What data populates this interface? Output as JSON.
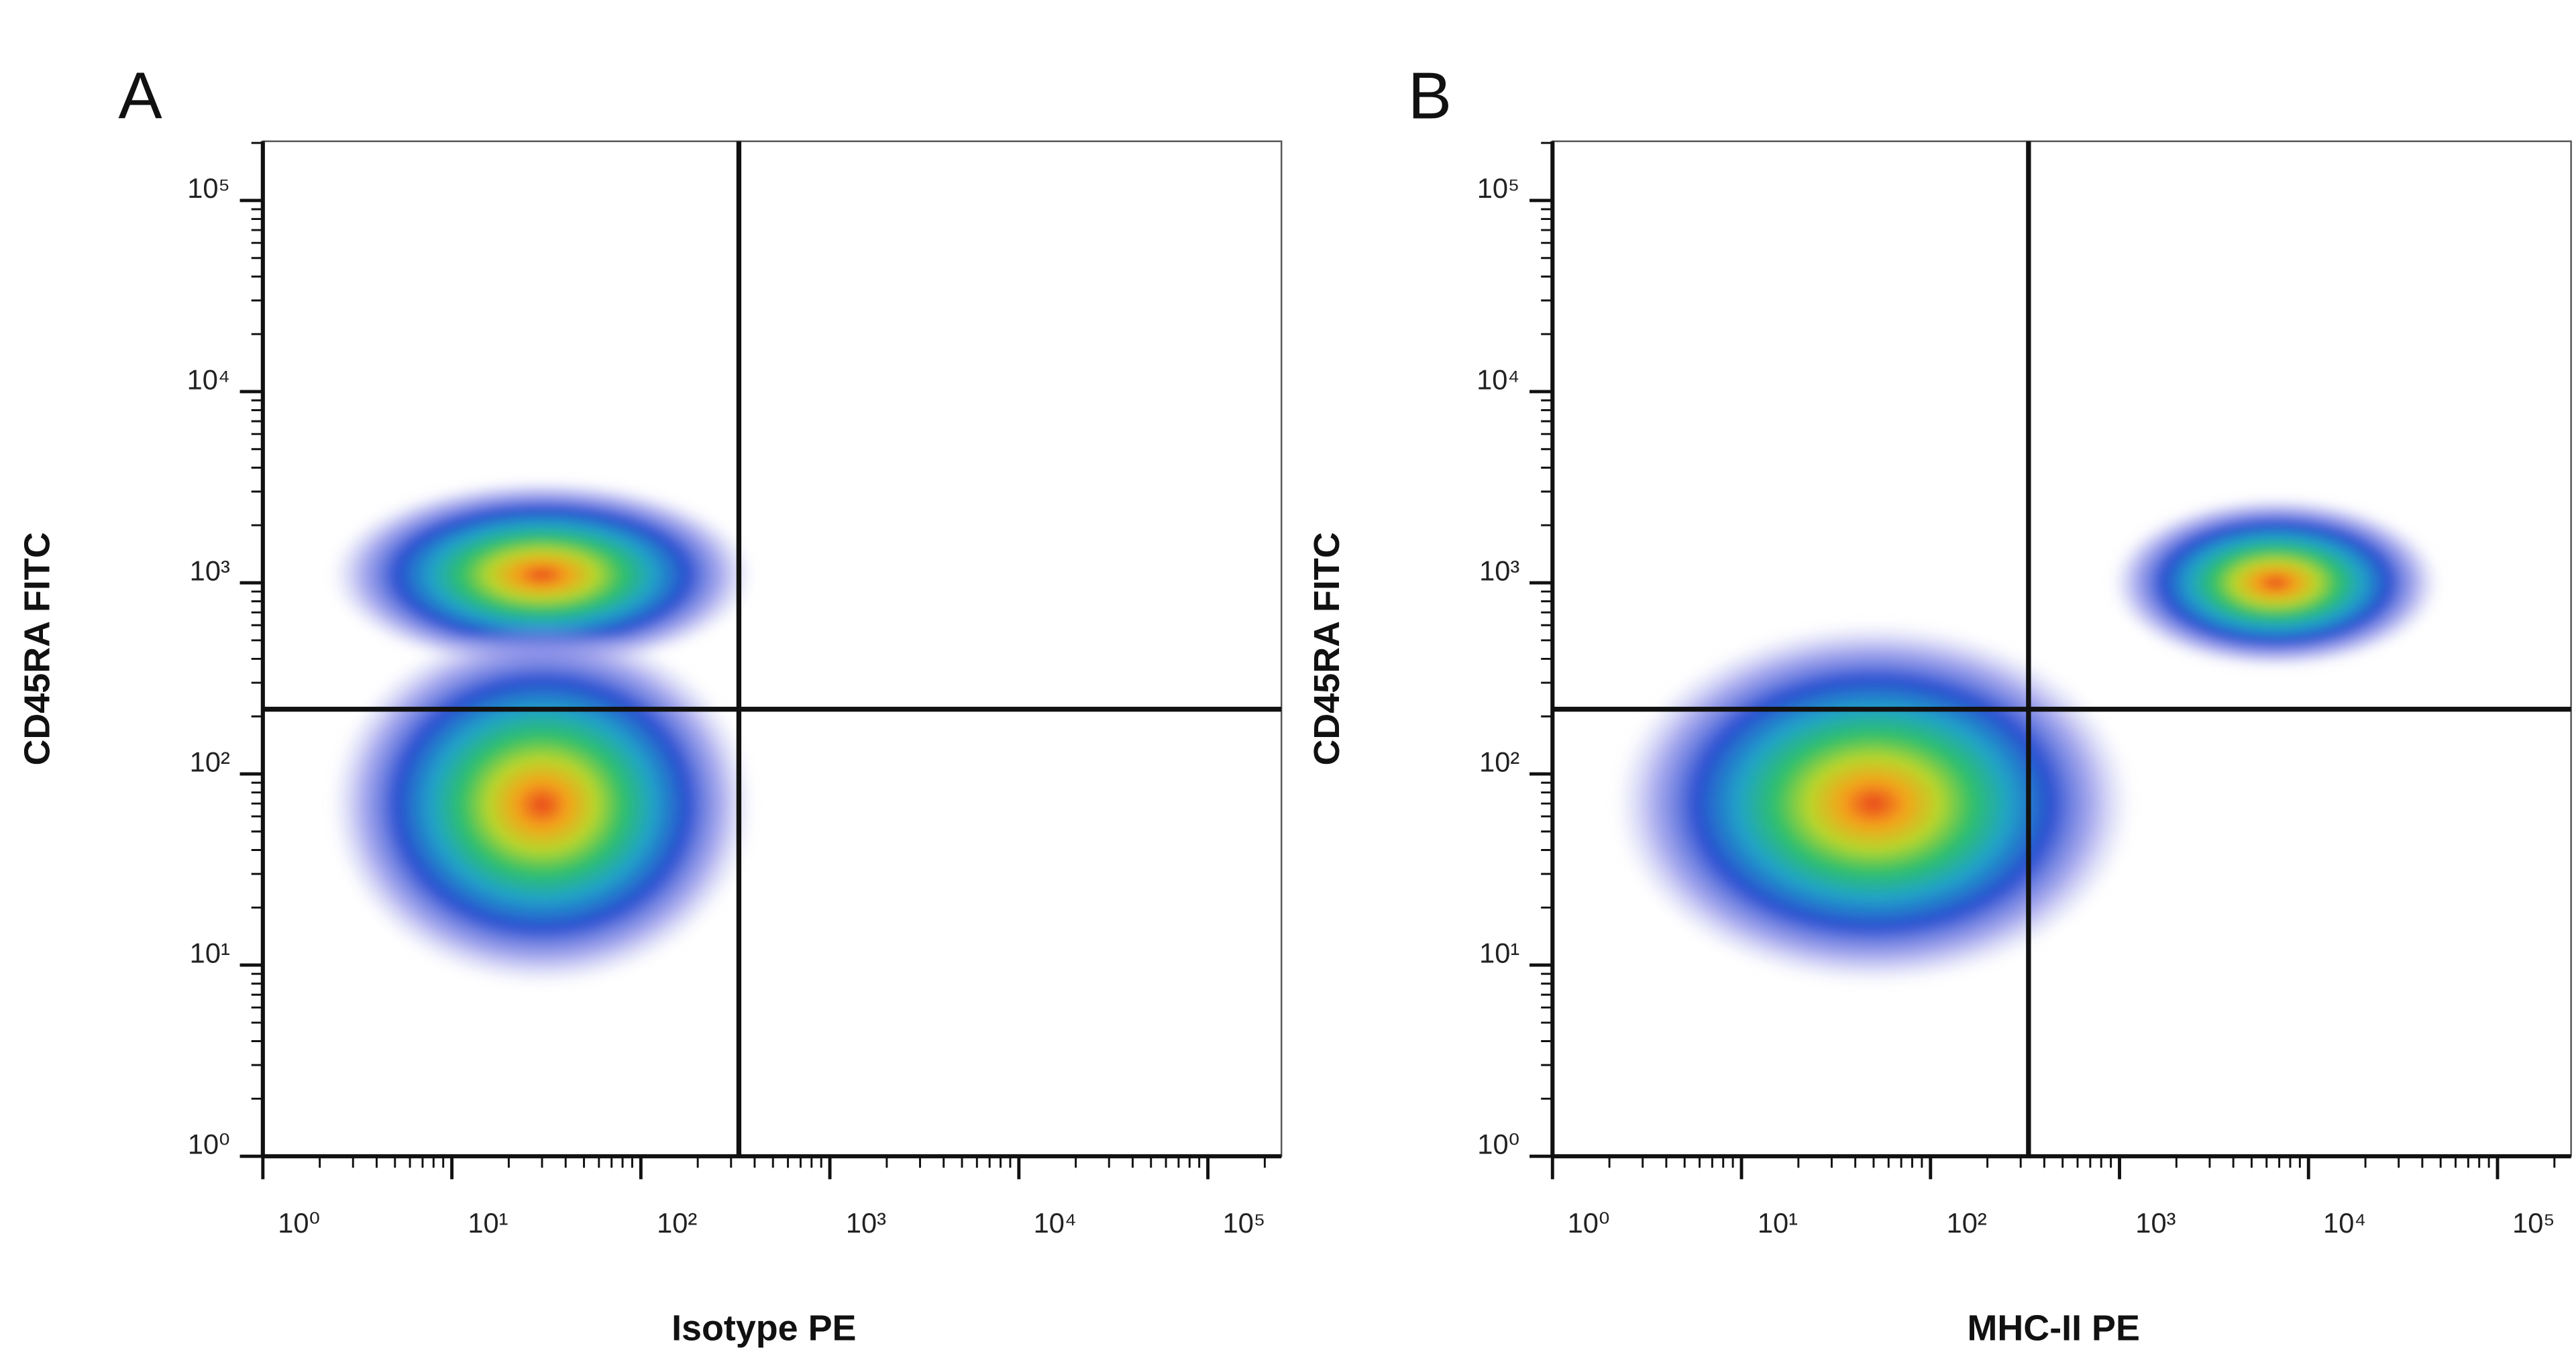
{
  "chart_data": [
    {
      "type": "density",
      "panel_label": "A",
      "xlabel": "Isotype PE",
      "ylabel": "CD45RA FITC",
      "xscale": "log",
      "yscale": "log",
      "xlim": [
        1,
        245000
      ],
      "ylim": [
        1,
        204000
      ],
      "xticks": [
        {
          "value": 1,
          "label": "10⁰"
        },
        {
          "value": 10,
          "label": "10¹"
        },
        {
          "value": 100,
          "label": "10²"
        },
        {
          "value": 1000,
          "label": "10³"
        },
        {
          "value": 10000,
          "label": "10⁴"
        },
        {
          "value": 100000,
          "label": "10⁵"
        }
      ],
      "yticks": [
        {
          "value": 1,
          "label": "10⁰"
        },
        {
          "value": 10,
          "label": "10¹"
        },
        {
          "value": 100,
          "label": "10²"
        },
        {
          "value": 1000,
          "label": "10³"
        },
        {
          "value": 10000,
          "label": "10⁴"
        },
        {
          "value": 100000,
          "label": "10⁵"
        }
      ],
      "minor_ticks": true,
      "quadrant": {
        "x": 330,
        "y": 218
      },
      "populations": [
        {
          "x": 30,
          "y": 1100,
          "sdx": 0.45,
          "sdy": 0.2
        },
        {
          "x": 30,
          "y": 69,
          "sdx": 0.45,
          "sdy": 0.38
        }
      ]
    },
    {
      "type": "density",
      "panel_label": "B",
      "xlabel": "MHC-II PE",
      "ylabel": "CD45RA FITC",
      "xscale": "log",
      "yscale": "log",
      "xlim": [
        1,
        245000
      ],
      "ylim": [
        1,
        204000
      ],
      "xticks": [
        {
          "value": 1,
          "label": "10⁰"
        },
        {
          "value": 10,
          "label": "10¹"
        },
        {
          "value": 100,
          "label": "10²"
        },
        {
          "value": 1000,
          "label": "10³"
        },
        {
          "value": 10000,
          "label": "10⁴"
        },
        {
          "value": 100000,
          "label": "10⁵"
        }
      ],
      "yticks": [
        {
          "value": 1,
          "label": "10⁰"
        },
        {
          "value": 10,
          "label": "10¹"
        },
        {
          "value": 100,
          "label": "10²"
        },
        {
          "value": 1000,
          "label": "10³"
        },
        {
          "value": 10000,
          "label": "10⁴"
        },
        {
          "value": 100000,
          "label": "10⁵"
        }
      ],
      "minor_ticks": true,
      "quadrant": {
        "x": 330,
        "y": 218
      },
      "populations": [
        {
          "x": 50,
          "y": 70,
          "sdx": 0.55,
          "sdy": 0.38
        },
        {
          "x": 6700,
          "y": 1000,
          "sdx": 0.35,
          "sdy": 0.18
        }
      ]
    }
  ]
}
